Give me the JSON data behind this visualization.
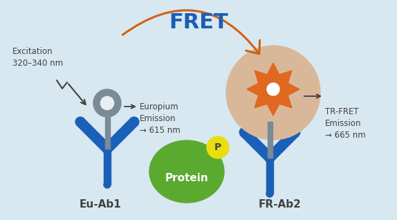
{
  "bg_color": "#d8e8f0",
  "title": "FRET",
  "title_color": "#1a5db5",
  "title_fontsize": 22,
  "antibody_color": "#1a60b8",
  "eu_circle_color": "#7a8a96",
  "eu_circle_hole_color": "#e8eef2",
  "fret_acceptor_bg_color": "#d9b89a",
  "fret_flower_color": "#e06820",
  "fret_flower_center_color": "#ffffff",
  "protein_color": "#5aaa30",
  "protein_text_color": "#ffffff",
  "phospho_color": "#e8de10",
  "phospho_text_color": "#444444",
  "arrow_color": "#d06010",
  "text_color": "#404040",
  "excitation_text": "Excitation\n320–340 nm",
  "europium_text": "Europium\nEmission\n→ 615 nm",
  "trfret_text": "TR-FRET\nEmission\n→ 665 nm",
  "eu_label": "Eu-Ab1",
  "fr_label": "FR-Ab2",
  "protein_label": "Protein",
  "phospho_label": "P"
}
